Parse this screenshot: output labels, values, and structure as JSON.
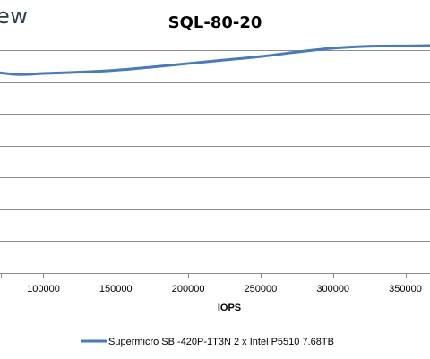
{
  "watermark": "ew",
  "chart_data": {
    "type": "line",
    "title": "SQL-80-20",
    "xlabel": "IOPS",
    "ylabel": "",
    "xlim": [
      70000,
      367000
    ],
    "ylim": [
      0,
      7
    ],
    "y_gridlines": [
      0,
      1,
      2,
      3,
      4,
      5,
      6,
      7
    ],
    "x_ticks": [
      {
        "value": 100000,
        "label": "100000"
      },
      {
        "value": 150000,
        "label": "150000"
      },
      {
        "value": 200000,
        "label": "200000"
      },
      {
        "value": 250000,
        "label": "250000"
      },
      {
        "value": 300000,
        "label": "300000"
      },
      {
        "value": 350000,
        "label": "350000"
      }
    ],
    "grid": true,
    "legend_position": "bottom",
    "series": [
      {
        "name": "Supermicro SBI-420P-1T3N 2 x Intel P5510 7.68TB",
        "color": "#4a7ab8",
        "x": [
          70000,
          80000,
          90000,
          100000,
          125000,
          150000,
          175000,
          200000,
          225000,
          250000,
          275000,
          300000,
          325000,
          350000,
          367000
        ],
        "y": [
          6.29,
          6.24,
          6.24,
          6.27,
          6.31,
          6.37,
          6.47,
          6.58,
          6.69,
          6.8,
          6.94,
          7.06,
          7.12,
          7.13,
          7.14
        ]
      }
    ]
  }
}
